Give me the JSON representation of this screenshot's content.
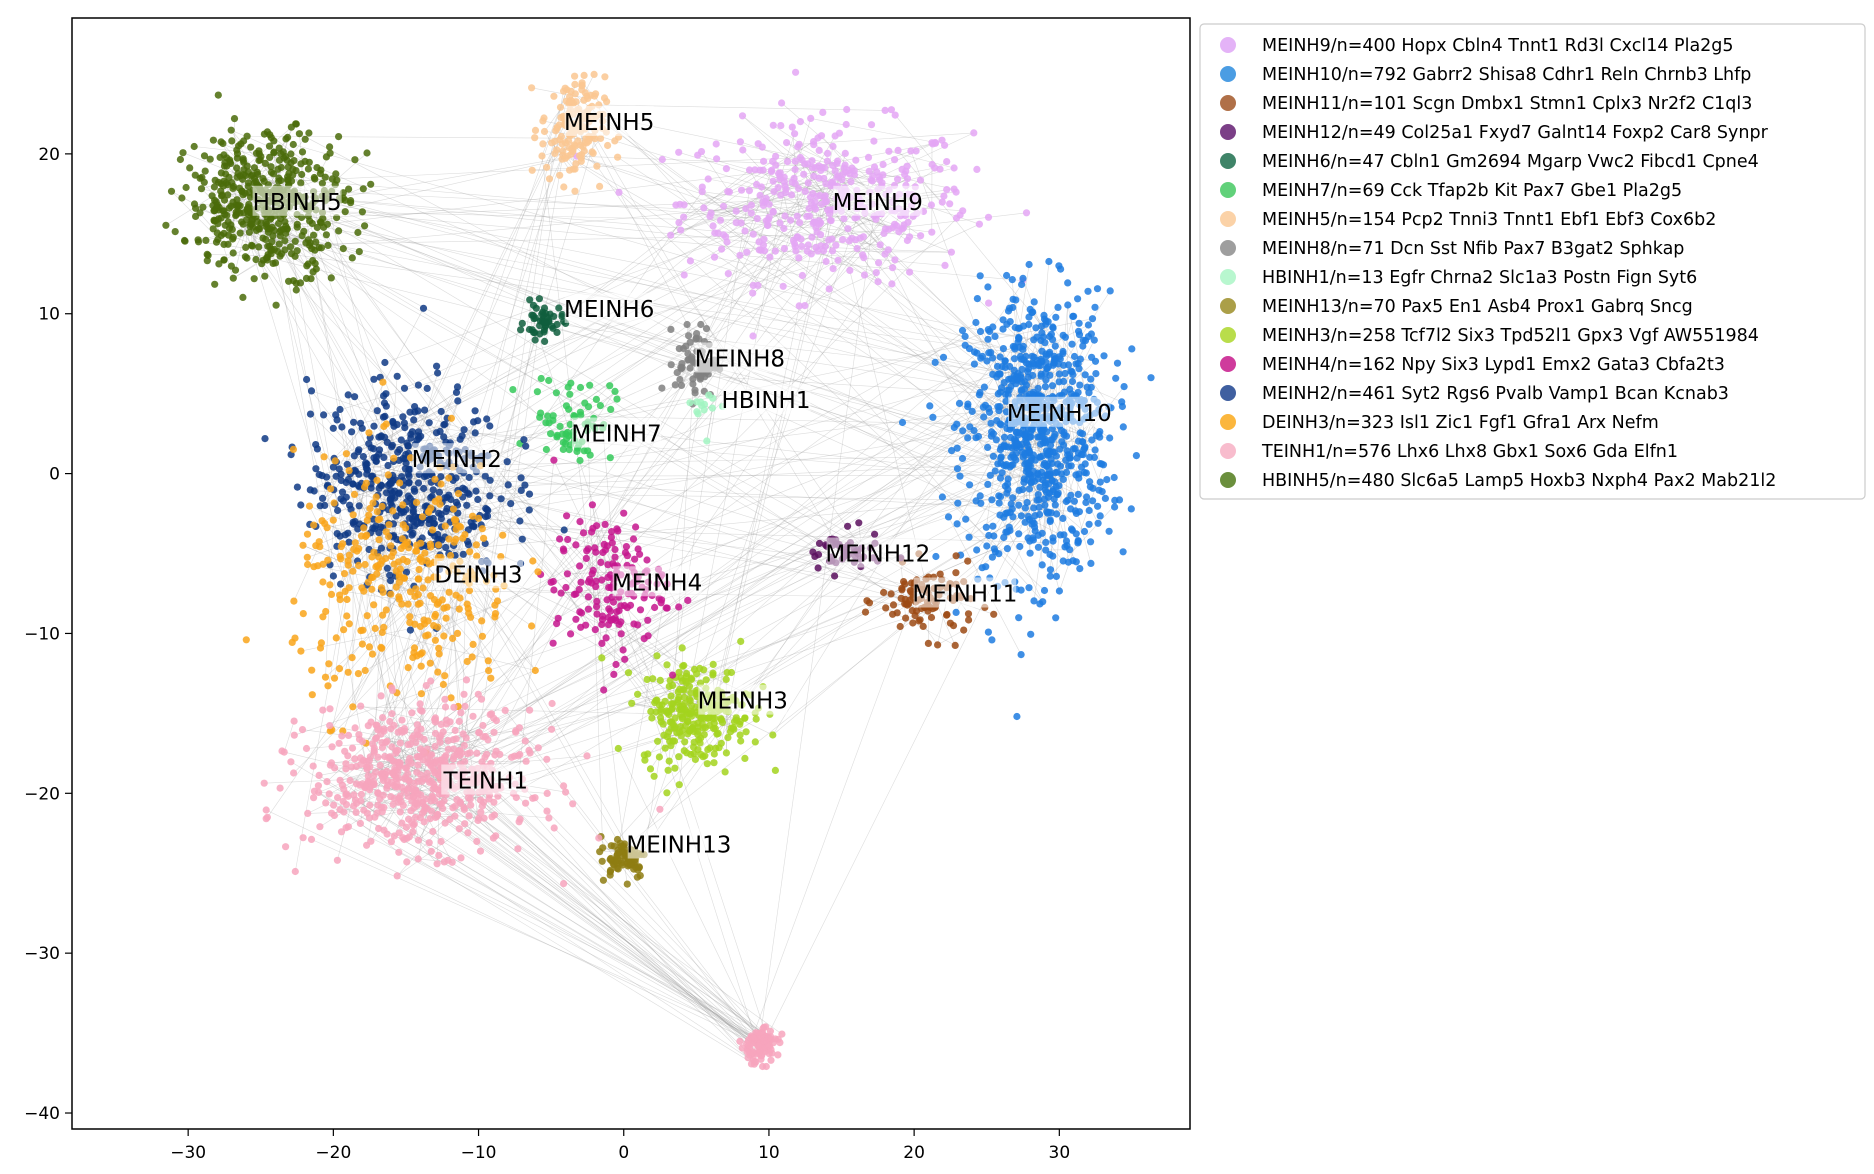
{
  "chart_data": {
    "type": "scatter",
    "title": "",
    "xlabel": "",
    "ylabel": "",
    "xlim": [
      -38,
      39
    ],
    "ylim": [
      -41,
      28.5
    ],
    "xticks": [
      -30,
      -20,
      -10,
      0,
      10,
      20,
      30
    ],
    "yticks": [
      -40,
      -30,
      -20,
      -10,
      0,
      10,
      20
    ],
    "xtick_labels": [
      "−30",
      "−20",
      "−10",
      "0",
      "10",
      "20",
      "30"
    ],
    "ytick_labels": [
      "−40",
      "−30",
      "−20",
      "−10",
      "0",
      "10",
      "20"
    ],
    "grid": false,
    "edges": "light gray lines connecting points (neighbor graph)",
    "legend_position": "outside-right-top",
    "series": [
      {
        "name": "MEINH9",
        "legend": "MEINH9/n=400 Hopx Cbln4 Tnnt1 Rd3l Cxcl14 Pla2g5",
        "color": "#e4a6f5",
        "n": 400,
        "center": [
          14,
          17
        ],
        "spread": [
          9,
          4.5
        ],
        "label_at": [
          17.5,
          17
        ]
      },
      {
        "name": "MEINH10",
        "legend": "MEINH10/n=792 Gabrr2 Shisa8 Cdhr1 Reln Chrnb3 Lhfp",
        "color": "#1d7be0",
        "n": 792,
        "center": [
          28.5,
          2.5
        ],
        "spread": [
          4.5,
          8
        ],
        "label_at": [
          30,
          3.8
        ]
      },
      {
        "name": "MEINH11",
        "legend": "MEINH11/n=101 Scgn Dmbx1 Stmn1 Cplx3 Nr2f2 C1ql3",
        "color": "#9c4a14",
        "n": 101,
        "center": [
          21,
          -8
        ],
        "spread": [
          3,
          2
        ],
        "label_at": [
          23.5,
          -7.5
        ]
      },
      {
        "name": "MEINH12",
        "legend": "MEINH12/n=49 Col25a1 Fxyd7 Galnt14 Foxp2 Car8 Synpr",
        "color": "#5b0f5e",
        "n": 49,
        "center": [
          15,
          -5
        ],
        "spread": [
          2.5,
          1.2
        ],
        "label_at": [
          17.5,
          -5
        ]
      },
      {
        "name": "MEINH6",
        "legend": "MEINH6/n=47 Cbln1 Gm2694 Mgarp Vwc2 Fibcd1 Cpne4",
        "color": "#0f5e3d",
        "n": 47,
        "center": [
          -5.5,
          9.5
        ],
        "spread": [
          1.2,
          1
        ],
        "label_at": [
          -1,
          10.3
        ]
      },
      {
        "name": "MEINH7",
        "legend": "MEINH7/n=69 Cck Tfap2b Kit Pax7 Gbe1 Pla2g5",
        "color": "#35c95a",
        "n": 69,
        "center": [
          -3.5,
          3.5
        ],
        "spread": [
          2.5,
          2.5
        ],
        "label_at": [
          -0.5,
          2.5
        ]
      },
      {
        "name": "MEINH5",
        "legend": "MEINH5/n=154 Pcp2 Tnni3 Tnnt1 Ebf1 Ebf3 Cox6b2",
        "color": "#fac792",
        "n": 154,
        "center": [
          -3.5,
          21.5
        ],
        "spread": [
          2,
          3
        ],
        "label_at": [
          -1,
          22
        ]
      },
      {
        "name": "MEINH8",
        "legend": "MEINH8/n=71 Dcn Sst Nfib Pax7 B3gat2 Sphkap",
        "color": "#808080",
        "n": 71,
        "center": [
          5,
          7
        ],
        "spread": [
          1.3,
          2
        ],
        "label_at": [
          8,
          7.2
        ]
      },
      {
        "name": "HBINH1",
        "legend": "HBINH1/n=13 Egfr Chrna2 Slc1a3 Postn Fign Syt6",
        "color": "#a2f5c2",
        "n": 13,
        "center": [
          6,
          4
        ],
        "spread": [
          1,
          1.5
        ],
        "label_at": [
          9.8,
          4.6
        ]
      },
      {
        "name": "MEINH13",
        "legend": "MEINH13/n=70 Pax5 En1 Asb4 Prox1 Gabrq Sncg",
        "color": "#8e7d12",
        "n": 70,
        "center": [
          0,
          -24
        ],
        "spread": [
          1.5,
          1.2
        ],
        "label_at": [
          3.8,
          -23.2
        ]
      },
      {
        "name": "MEINH3",
        "legend": "MEINH3/n=258 Tcf7l2 Six3 Tpd52l1 Gpx3 Vgf AW551984",
        "color": "#a3d41d",
        "n": 258,
        "center": [
          5,
          -15
        ],
        "spread": [
          3.5,
          3
        ],
        "label_at": [
          8.2,
          -14.2
        ]
      },
      {
        "name": "MEINH4",
        "legend": "MEINH4/n=162 Npy Six3 Lypd1 Emx2 Gata3 Cbfa2t3",
        "color": "#c5168e",
        "n": 162,
        "center": [
          -1,
          -7
        ],
        "spread": [
          3.5,
          4
        ],
        "label_at": [
          2.3,
          -6.8
        ]
      },
      {
        "name": "MEINH2",
        "legend": "MEINH2/n=461 Syt2 Rgs6 Pvalb Vamp1 Bcan Kcnab3",
        "color": "#0f3a85",
        "n": 461,
        "center": [
          -15,
          -0.5
        ],
        "spread": [
          6,
          5.5
        ],
        "label_at": [
          -11.5,
          0.9
        ]
      },
      {
        "name": "DEINH3",
        "legend": "DEINH3/n=323 Isl1 Zic1 Fgf1 Gfra1 Arx Nefm",
        "color": "#f9a51a",
        "n": 323,
        "center": [
          -15,
          -7
        ],
        "spread": [
          7,
          7
        ],
        "label_at": [
          -10,
          -6.3
        ]
      },
      {
        "name": "TEINH1",
        "legend": "TEINH1/n=576 Lhx6 Lhx8 Gbx1 Sox6 Gda Elfn1",
        "color": "#f7a5bd",
        "n": 576,
        "center": [
          -14,
          -19
        ],
        "spread": [
          7,
          4
        ],
        "label_at": [
          -9.5,
          -19.2
        ]
      },
      {
        "name": "HBINH5",
        "legend": "HBINH5/n=480 Slc6a5 Lamp5 Hoxb3 Nxph4 Pax2 Mab21l2",
        "color": "#4a6b09",
        "n": 480,
        "center": [
          -24.5,
          17
        ],
        "spread": [
          5,
          4
        ],
        "label_at": [
          -22.5,
          17
        ]
      }
    ],
    "extra_clusters": [
      {
        "series": "TEINH1",
        "center": [
          9.3,
          -35.8
        ],
        "spread": [
          1.2,
          1
        ],
        "n": 90
      }
    ],
    "legend_colors": [
      "#e4b3f7",
      "#4b9de3",
      "#b07048",
      "#7b3f87",
      "#3f8468",
      "#61d17a",
      "#fbd2a7",
      "#9e9e9e",
      "#b8f7cf",
      "#ab9f48",
      "#b9dd4b",
      "#cf3b9c",
      "#3f5fa0",
      "#fbb63d",
      "#f8bccd",
      "#6b8f3d"
    ]
  }
}
